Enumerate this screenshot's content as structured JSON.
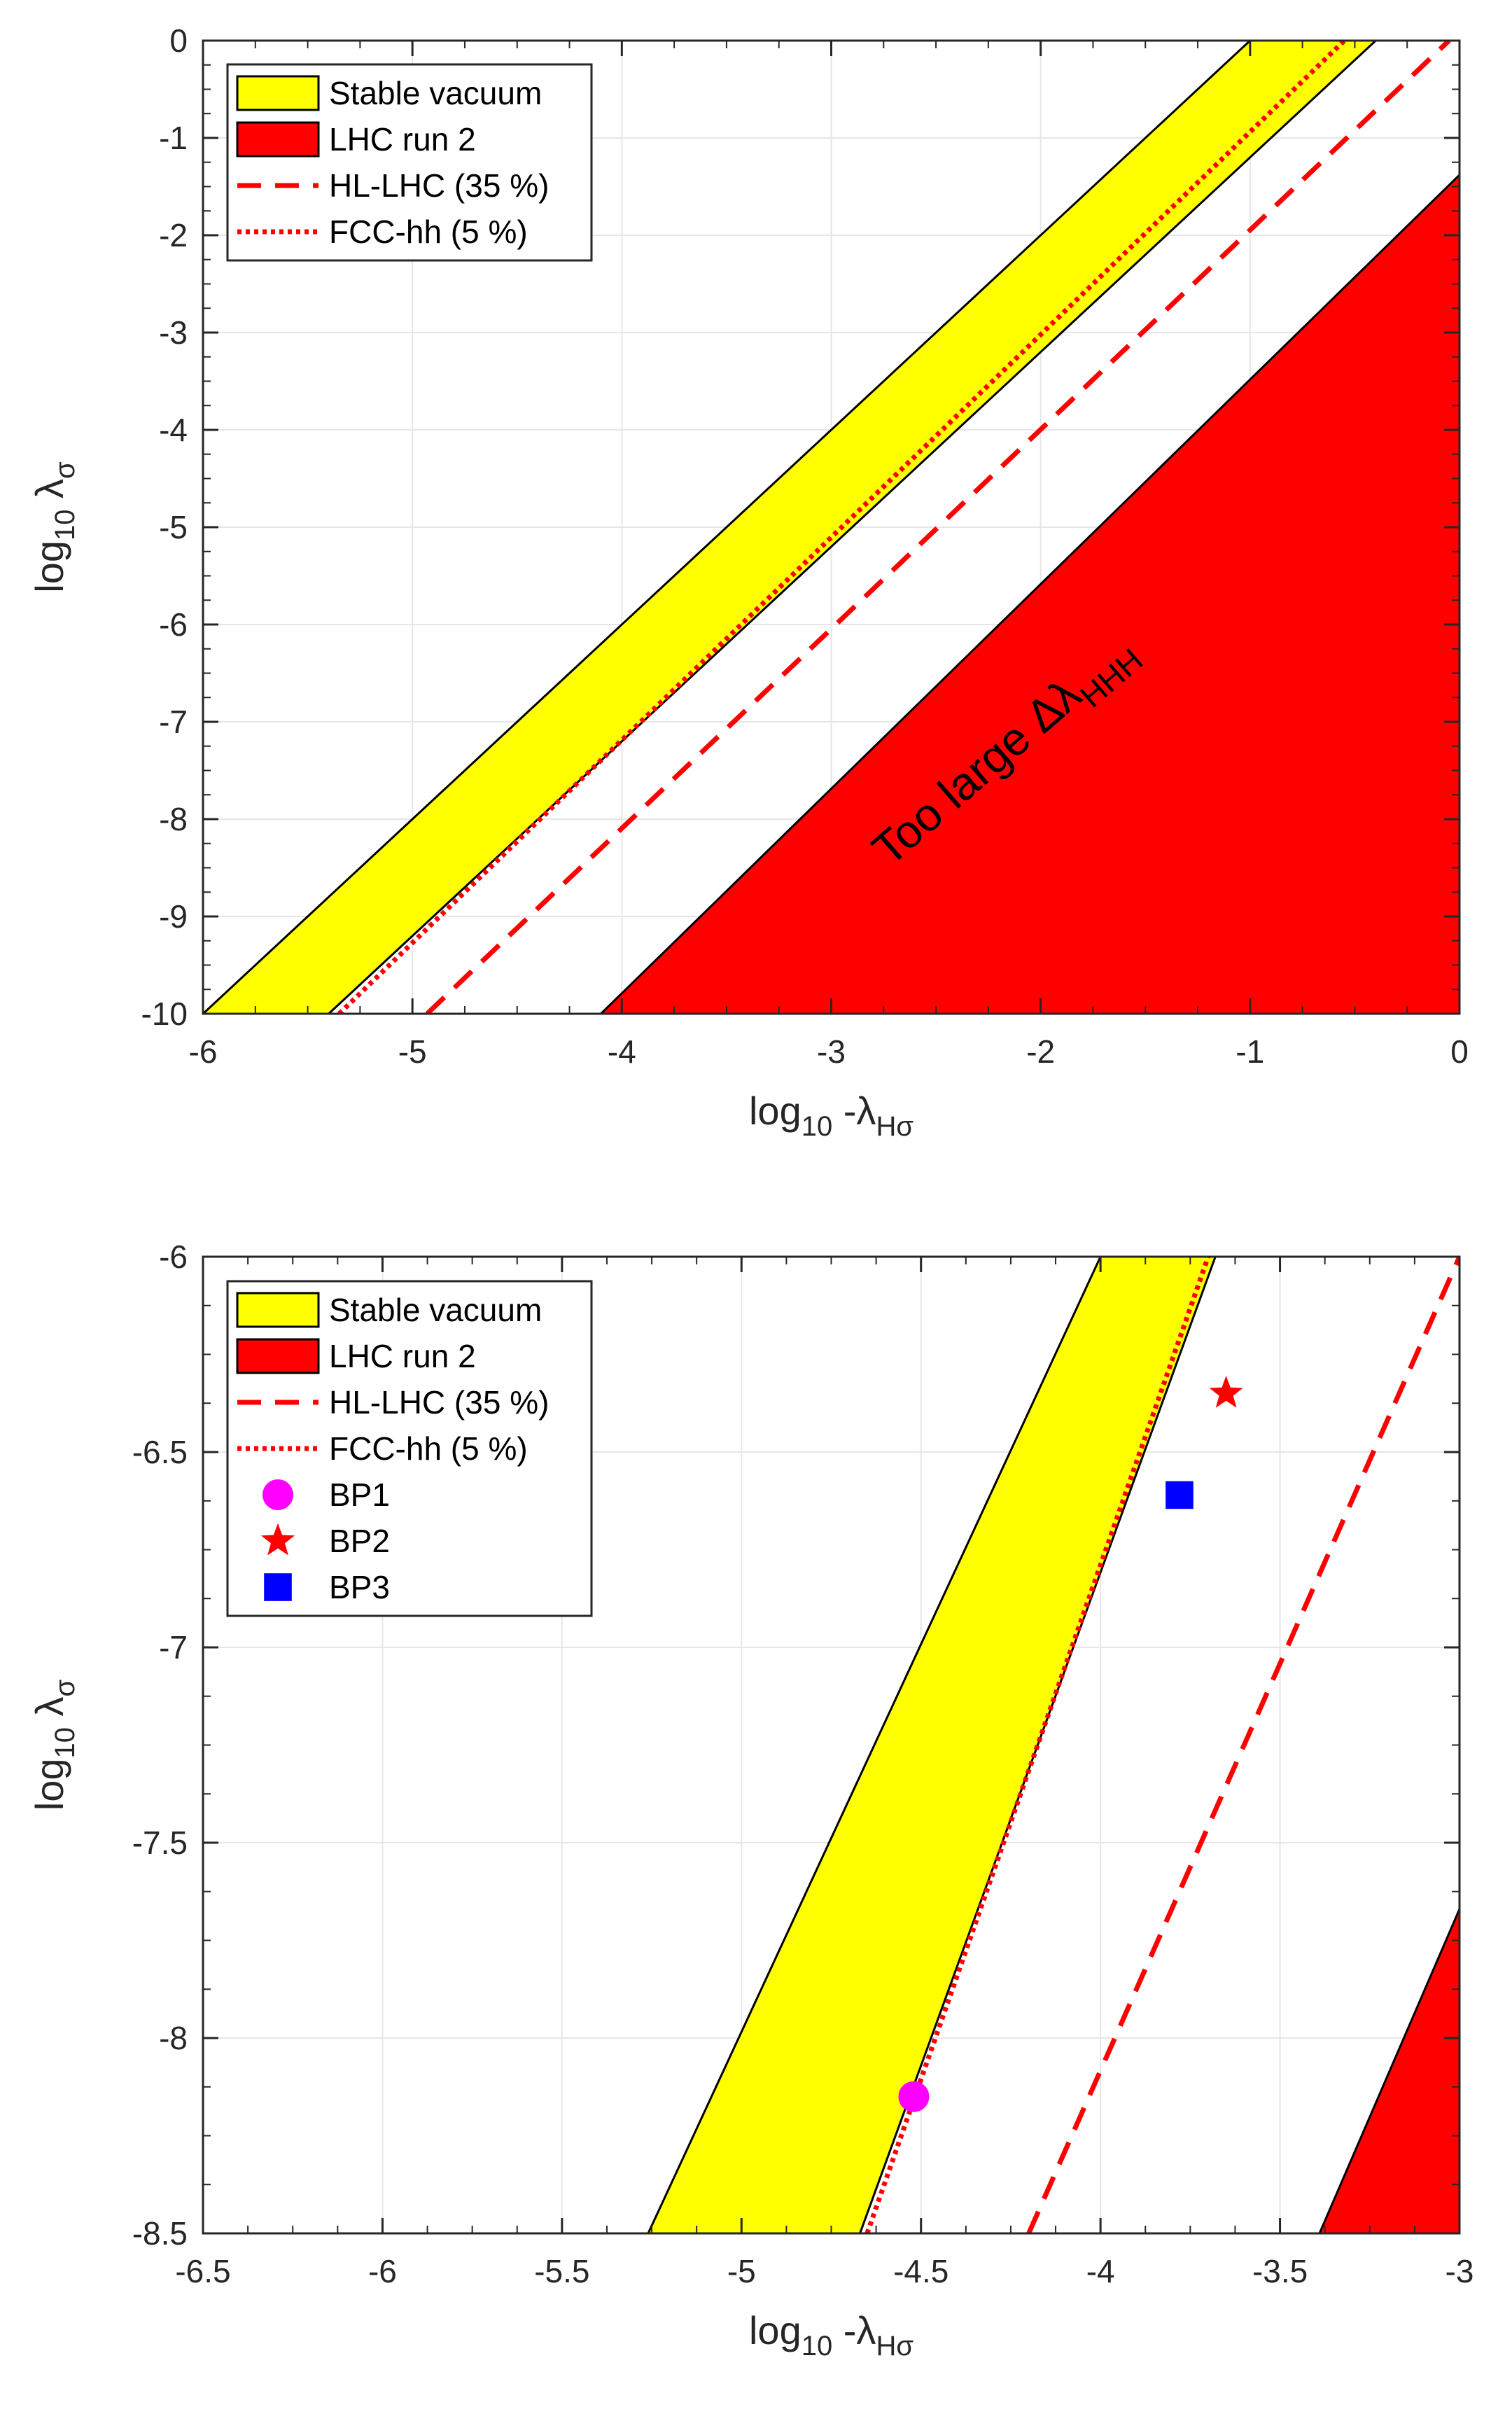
{
  "colors": {
    "stable_vacuum": "#ffff00",
    "lhc_run2": "#ff0000",
    "hl_lhc": "#ff0000",
    "fcc_hh": "#ff0000",
    "bp1": "#ff00ff",
    "bp2": "#ff0000",
    "bp3": "#0000ff",
    "grid": "#e6e6e6"
  },
  "chart_data": [
    {
      "type": "area",
      "xlabel": {
        "main": "log",
        "sub": "10",
        "rest": " -λ",
        "sub2": "Hσ"
      },
      "ylabel": {
        "main": "log",
        "sub": "10",
        "rest": " λ",
        "sub2": "σ"
      },
      "xlim": [
        -6,
        0
      ],
      "ylim": [
        -10,
        0
      ],
      "xticks": [
        -6,
        -5,
        -4,
        -3,
        -2,
        -1,
        0
      ],
      "yticks": [
        0,
        -1,
        -2,
        -3,
        -4,
        -5,
        -6,
        -7,
        -8,
        -9,
        -10
      ],
      "grid": true,
      "legend_position": "top-left",
      "annotation": {
        "text": "Too large Δλ",
        "sub": "HHH"
      },
      "series": [
        {
          "name": "Stable vacuum",
          "kind": "band",
          "lower": [
            [
              -5.4,
              -10
            ],
            [
              -0.4,
              0
            ]
          ],
          "upper": [
            [
              -6.0,
              -10
            ],
            [
              -1.0,
              0
            ]
          ]
        },
        {
          "name": "LHC run 2",
          "kind": "region",
          "points": [
            [
              -4.1,
              -10
            ],
            [
              0,
              -1.38
            ],
            [
              0,
              -10
            ]
          ]
        },
        {
          "name": "HL-LHC (35 %)",
          "kind": "dashed-line",
          "points": [
            [
              -4.93,
              -10
            ],
            [
              -0.05,
              0
            ]
          ]
        },
        {
          "name": "FCC-hh (5 %)",
          "kind": "dotted-line",
          "points": [
            [
              -5.35,
              -10
            ],
            [
              -0.55,
              0
            ]
          ]
        }
      ]
    },
    {
      "type": "area",
      "xlabel": {
        "main": "log",
        "sub": "10",
        "rest": " -λ",
        "sub2": "Hσ"
      },
      "ylabel": {
        "main": "log",
        "sub": "10",
        "rest": " λ",
        "sub2": "σ"
      },
      "xlim": [
        -6.5,
        -3
      ],
      "ylim": [
        -8.5,
        -6
      ],
      "xticks": [
        -6.5,
        -6,
        -5.5,
        -5,
        -4.5,
        -4,
        -3.5,
        -3
      ],
      "yticks": [
        -6,
        -6.5,
        -7,
        -7.5,
        -8,
        -8.5
      ],
      "grid": true,
      "legend_position": "top-left",
      "series": [
        {
          "name": "Stable vacuum",
          "kind": "band",
          "lower": [
            [
              -4.67,
              -8.5
            ],
            [
              -3.68,
              -6
            ]
          ],
          "upper": [
            [
              -5.26,
              -8.5
            ],
            [
              -4.0,
              -6
            ]
          ]
        },
        {
          "name": "LHC run 2",
          "kind": "region",
          "points": [
            [
              -3.39,
              -8.5
            ],
            [
              -3,
              -7.67
            ],
            [
              -3,
              -8.5
            ]
          ]
        },
        {
          "name": "HL-LHC (35 %)",
          "kind": "dashed-line",
          "points": [
            [
              -4.2,
              -8.5
            ],
            [
              -3,
              -6
            ]
          ]
        },
        {
          "name": "FCC-hh (5 %)",
          "kind": "dotted-line",
          "points": [
            [
              -4.65,
              -8.5
            ],
            [
              -3.7,
              -6
            ]
          ]
        },
        {
          "name": "BP1",
          "kind": "marker",
          "marker": "circle",
          "x": -4.52,
          "y": -8.15
        },
        {
          "name": "BP2",
          "kind": "marker",
          "marker": "star",
          "x": -3.65,
          "y": -6.35
        },
        {
          "name": "BP3",
          "kind": "marker",
          "marker": "square",
          "x": -3.78,
          "y": -6.61
        }
      ]
    }
  ]
}
